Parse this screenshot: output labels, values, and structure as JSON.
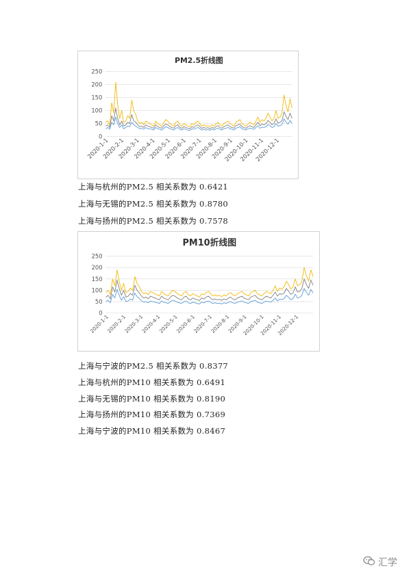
{
  "chart_data": [
    {
      "type": "line",
      "title": "PM2.5折线图",
      "ylim": [
        0,
        250
      ],
      "yticks": [
        0,
        50,
        100,
        150,
        200,
        250
      ],
      "xticks": [
        "2020-1-1",
        "2020-2-1",
        "2020-3-1",
        "2020-4-1",
        "2020-5-1",
        "2020-6-1",
        "2020-7-1",
        "2020-8-1",
        "2020-9-1",
        "2020-10-1",
        "2020-11-1",
        "2020-12-1"
      ],
      "grid": true,
      "series": [
        {
          "color": "#f2b705",
          "values": [
            55,
            60,
            45,
            130,
            90,
            210,
            120,
            70,
            100,
            55,
            60,
            80,
            70,
            140,
            100,
            85,
            60,
            50,
            55,
            45,
            60,
            55,
            50,
            45,
            40,
            60,
            50,
            45,
            40,
            55,
            65,
            60,
            50,
            45,
            40,
            55,
            60,
            45,
            40,
            50,
            45,
            40,
            38,
            50,
            45,
            55,
            60,
            50,
            40,
            45,
            40,
            42,
            38,
            45,
            40,
            48,
            55,
            45,
            40,
            50,
            55,
            60,
            50,
            45,
            40,
            55,
            60,
            65,
            50,
            45,
            40,
            48,
            55,
            50,
            45,
            60,
            75,
            55,
            65,
            60,
            70,
            90,
            75,
            60,
            70,
            100,
            70,
            75,
            90,
            160,
            120,
            95,
            145,
            110
          ]
        },
        {
          "color": "#7f7f7f",
          "values": [
            40,
            45,
            35,
            80,
            60,
            110,
            70,
            45,
            60,
            40,
            45,
            55,
            50,
            85,
            60,
            55,
            45,
            38,
            40,
            35,
            45,
            40,
            38,
            35,
            32,
            45,
            38,
            35,
            32,
            42,
            48,
            45,
            38,
            35,
            32,
            42,
            45,
            35,
            32,
            38,
            35,
            32,
            30,
            38,
            35,
            42,
            45,
            38,
            32,
            35,
            32,
            34,
            30,
            35,
            32,
            38,
            42,
            35,
            32,
            38,
            42,
            45,
            38,
            35,
            32,
            42,
            45,
            48,
            38,
            35,
            32,
            38,
            42,
            38,
            35,
            45,
            55,
            42,
            48,
            45,
            50,
            62,
            55,
            45,
            50,
            68,
            52,
            55,
            62,
            95,
            78,
            65,
            90,
            70
          ]
        },
        {
          "color": "#5b9bd5",
          "values": [
            30,
            35,
            28,
            55,
            45,
            75,
            50,
            35,
            45,
            30,
            35,
            40,
            38,
            55,
            45,
            40,
            35,
            30,
            32,
            28,
            35,
            30,
            30,
            28,
            25,
            35,
            30,
            28,
            25,
            32,
            38,
            35,
            30,
            28,
            25,
            32,
            35,
            28,
            25,
            30,
            28,
            25,
            24,
            30,
            28,
            32,
            35,
            30,
            25,
            28,
            25,
            27,
            24,
            28,
            25,
            30,
            32,
            28,
            25,
            30,
            32,
            35,
            30,
            28,
            25,
            32,
            35,
            38,
            30,
            28,
            25,
            30,
            32,
            30,
            28,
            35,
            42,
            32,
            36,
            35,
            38,
            46,
            42,
            35,
            38,
            50,
            40,
            42,
            46,
            68,
            56,
            48,
            62,
            50
          ]
        }
      ]
    },
    {
      "type": "line",
      "title": "PM10折线图",
      "ylim": [
        0,
        250
      ],
      "yticks": [
        0,
        50,
        100,
        150,
        200,
        250
      ],
      "xticks": [
        "2020-1-1",
        "2020-2-1",
        "2020-3-1",
        "2020-4-1",
        "2020-5-1",
        "2020-6-1",
        "2020-7-1",
        "2020-8-1",
        "2020-9-1",
        "2020-10-1",
        "2020-11-1",
        "2020-12-1"
      ],
      "grid": true,
      "series": [
        {
          "color": "#f2b705",
          "values": [
            90,
            100,
            80,
            150,
            120,
            190,
            140,
            100,
            130,
            90,
            95,
            110,
            100,
            160,
            130,
            115,
            95,
            85,
            90,
            80,
            95,
            90,
            85,
            80,
            75,
            95,
            85,
            80,
            75,
            90,
            100,
            95,
            85,
            80,
            75,
            90,
            95,
            80,
            75,
            85,
            80,
            75,
            70,
            85,
            80,
            90,
            95,
            85,
            75,
            80,
            75,
            78,
            72,
            80,
            75,
            85,
            90,
            80,
            75,
            85,
            90,
            95,
            85,
            80,
            75,
            90,
            95,
            100,
            85,
            80,
            75,
            85,
            95,
            90,
            85,
            100,
            120,
            95,
            110,
            105,
            115,
            140,
            125,
            105,
            115,
            150,
            120,
            125,
            140,
            200,
            165,
            140,
            190,
            160
          ]
        },
        {
          "color": "#7f7f7f",
          "values": [
            70,
            78,
            62,
            115,
            92,
            145,
            108,
            78,
            100,
            70,
            74,
            86,
            78,
            122,
            100,
            88,
            74,
            66,
            70,
            62,
            74,
            70,
            66,
            62,
            58,
            74,
            66,
            62,
            58,
            70,
            78,
            74,
            66,
            62,
            58,
            70,
            74,
            62,
            58,
            66,
            62,
            58,
            55,
            66,
            62,
            70,
            74,
            66,
            58,
            62,
            58,
            60,
            56,
            62,
            58,
            66,
            70,
            62,
            58,
            66,
            70,
            74,
            66,
            62,
            58,
            70,
            74,
            78,
            66,
            62,
            58,
            66,
            74,
            70,
            66,
            78,
            92,
            74,
            85,
            82,
            88,
            108,
            96,
            82,
            88,
            115,
            92,
            96,
            108,
            150,
            126,
            108,
            145,
            122
          ]
        },
        {
          "color": "#5b9bd5",
          "values": [
            50,
            56,
            45,
            82,
            66,
            104,
            78,
            56,
            72,
            50,
            53,
            62,
            56,
            88,
            72,
            64,
            53,
            48,
            50,
            45,
            53,
            50,
            48,
            45,
            42,
            53,
            48,
            45,
            42,
            50,
            56,
            53,
            48,
            45,
            42,
            50,
            53,
            45,
            42,
            48,
            45,
            42,
            40,
            48,
            45,
            50,
            53,
            48,
            42,
            45,
            42,
            43,
            40,
            45,
            42,
            48,
            50,
            45,
            42,
            48,
            50,
            53,
            48,
            45,
            42,
            50,
            53,
            56,
            48,
            45,
            42,
            48,
            53,
            50,
            48,
            56,
            66,
            53,
            61,
            59,
            63,
            78,
            69,
            59,
            63,
            83,
            66,
            69,
            78,
            108,
            91,
            78,
            104,
            88
          ]
        }
      ]
    }
  ],
  "text_lines": [
    "上海与杭州的PM2.5 相关系数为 0.6421",
    "上海与无锡的PM2.5 相关系数为 0.8780",
    "上海与扬州的PM2.5 相关系数为 0.7578",
    "上海与宁波的PM2.5 相关系数为 0.8377",
    "上海与杭州的PM10 相关系数为 0.6491",
    "上海与无锡的PM10 相关系数为 0.8190",
    "上海与扬州的PM10 相关系数为 0.7369",
    "上海与宁波的PM10 相关系数为 0.8467"
  ],
  "watermark": {
    "icon": "wechat-icon",
    "text": "汇学"
  }
}
